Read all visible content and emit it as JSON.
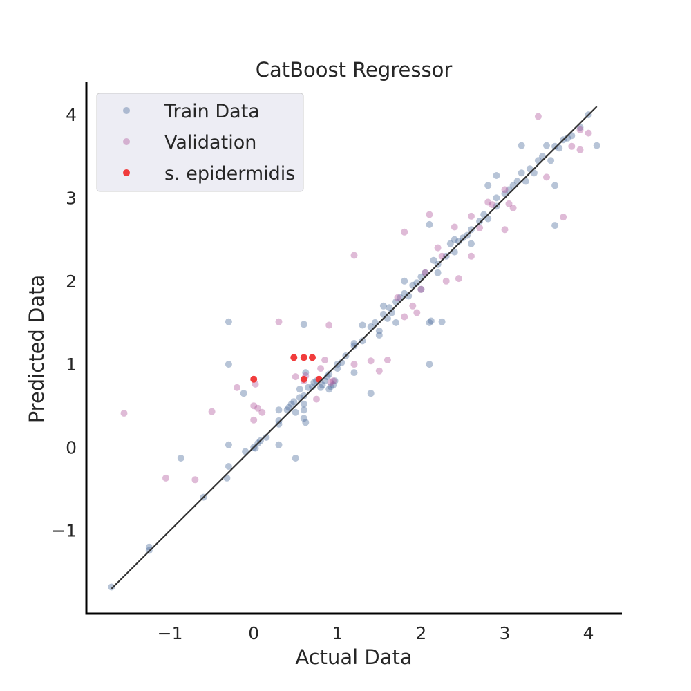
{
  "chart_data": {
    "type": "scatter",
    "title": "CatBoost Regressor",
    "xlabel": "Actual Data",
    "ylabel": "Predicted Data",
    "xlim": [
      -2.0,
      4.4
    ],
    "ylim": [
      -2.0,
      4.4
    ],
    "xticks": [
      -1,
      0,
      1,
      2,
      3,
      4
    ],
    "yticks": [
      -1,
      0,
      1,
      2,
      3,
      4
    ],
    "xtick_labels": [
      "−1",
      "0",
      "1",
      "2",
      "3",
      "4"
    ],
    "ytick_labels": [
      "−1",
      "0",
      "1",
      "2",
      "3",
      "4"
    ],
    "grid": false,
    "legend_position": "top-left",
    "reference_line": {
      "x": [
        -1.7,
        4.1
      ],
      "y": [
        -1.7,
        4.1
      ],
      "color": "#333333"
    },
    "series": [
      {
        "name": "Train Data",
        "color": "#4c6b9c",
        "opacity": 0.4,
        "points": [
          [
            -1.7,
            -1.68
          ],
          [
            -1.25,
            -1.2
          ],
          [
            -1.25,
            -1.24
          ],
          [
            -0.6,
            -0.6
          ],
          [
            -0.87,
            -0.13
          ],
          [
            -0.32,
            -0.37
          ],
          [
            -0.3,
            -0.23
          ],
          [
            -0.3,
            0.03
          ],
          [
            -0.3,
            1.0
          ],
          [
            -0.3,
            1.51
          ],
          [
            -0.12,
            0.65
          ],
          [
            -0.1,
            -0.05
          ],
          [
            0.0,
            0.0
          ],
          [
            0.02,
            -0.01
          ],
          [
            0.05,
            0.05
          ],
          [
            0.08,
            0.08
          ],
          [
            0.15,
            0.12
          ],
          [
            0.3,
            0.03
          ],
          [
            0.3,
            0.28
          ],
          [
            0.3,
            0.32
          ],
          [
            0.3,
            0.45
          ],
          [
            0.4,
            0.45
          ],
          [
            0.42,
            0.48
          ],
          [
            0.45,
            0.52
          ],
          [
            0.48,
            0.55
          ],
          [
            0.5,
            0.42
          ],
          [
            0.5,
            -0.13
          ],
          [
            0.55,
            0.6
          ],
          [
            0.55,
            0.7
          ],
          [
            0.6,
            0.35
          ],
          [
            0.6,
            0.45
          ],
          [
            0.6,
            0.52
          ],
          [
            0.6,
            0.62
          ],
          [
            0.62,
            0.3
          ],
          [
            0.6,
            1.48
          ],
          [
            0.62,
            0.9
          ],
          [
            0.65,
            0.72
          ],
          [
            0.7,
            0.73
          ],
          [
            0.72,
            0.78
          ],
          [
            0.75,
            0.8
          ],
          [
            0.8,
            0.72
          ],
          [
            0.82,
            0.75
          ],
          [
            0.85,
            0.8
          ],
          [
            0.88,
            0.85
          ],
          [
            0.9,
            0.7
          ],
          [
            0.9,
            0.88
          ],
          [
            0.92,
            0.73
          ],
          [
            0.95,
            0.75
          ],
          [
            0.97,
            0.8
          ],
          [
            1.0,
            1.0
          ],
          [
            1.0,
            0.95
          ],
          [
            1.05,
            1.02
          ],
          [
            1.1,
            1.1
          ],
          [
            1.2,
            1.22
          ],
          [
            1.2,
            1.25
          ],
          [
            1.2,
            0.9
          ],
          [
            1.3,
            1.28
          ],
          [
            1.3,
            1.47
          ],
          [
            1.4,
            0.65
          ],
          [
            1.4,
            1.45
          ],
          [
            1.45,
            1.5
          ],
          [
            1.5,
            1.35
          ],
          [
            1.5,
            1.4
          ],
          [
            1.55,
            1.6
          ],
          [
            1.55,
            1.7
          ],
          [
            1.6,
            1.55
          ],
          [
            1.62,
            1.68
          ],
          [
            1.65,
            1.62
          ],
          [
            1.7,
            1.75
          ],
          [
            1.7,
            1.5
          ],
          [
            1.75,
            1.8
          ],
          [
            1.8,
            1.85
          ],
          [
            1.8,
            2.0
          ],
          [
            1.85,
            1.82
          ],
          [
            1.9,
            1.95
          ],
          [
            1.95,
            1.98
          ],
          [
            2.0,
            2.05
          ],
          [
            2.0,
            1.9
          ],
          [
            2.05,
            2.1
          ],
          [
            2.1,
            1.5
          ],
          [
            2.1,
            2.68
          ],
          [
            2.1,
            1.0
          ],
          [
            2.12,
            1.52
          ],
          [
            2.15,
            2.25
          ],
          [
            2.2,
            2.2
          ],
          [
            2.25,
            1.51
          ],
          [
            2.2,
            2.1
          ],
          [
            2.3,
            2.3
          ],
          [
            2.35,
            2.45
          ],
          [
            2.4,
            2.35
          ],
          [
            2.4,
            2.5
          ],
          [
            2.45,
            2.48
          ],
          [
            2.5,
            2.52
          ],
          [
            2.55,
            2.55
          ],
          [
            2.6,
            2.62
          ],
          [
            2.6,
            2.45
          ],
          [
            2.7,
            2.72
          ],
          [
            2.75,
            2.8
          ],
          [
            2.8,
            2.75
          ],
          [
            2.8,
            3.15
          ],
          [
            2.9,
            3.0
          ],
          [
            2.9,
            3.27
          ],
          [
            2.9,
            2.9
          ],
          [
            3.0,
            3.05
          ],
          [
            3.05,
            3.1
          ],
          [
            3.1,
            3.15
          ],
          [
            3.15,
            3.2
          ],
          [
            3.2,
            3.3
          ],
          [
            3.2,
            3.63
          ],
          [
            3.25,
            3.2
          ],
          [
            3.3,
            3.35
          ],
          [
            3.35,
            3.3
          ],
          [
            3.4,
            3.45
          ],
          [
            3.45,
            3.5
          ],
          [
            3.5,
            3.63
          ],
          [
            3.55,
            3.45
          ],
          [
            3.6,
            3.15
          ],
          [
            3.6,
            3.62
          ],
          [
            3.6,
            2.67
          ],
          [
            3.65,
            3.6
          ],
          [
            3.7,
            3.7
          ],
          [
            3.75,
            3.72
          ],
          [
            3.8,
            3.75
          ],
          [
            3.9,
            3.85
          ],
          [
            4.0,
            4.0
          ],
          [
            4.1,
            3.63
          ]
        ]
      },
      {
        "name": "Validation",
        "color": "#b0569a",
        "opacity": 0.4,
        "points": [
          [
            -1.55,
            0.41
          ],
          [
            -1.05,
            -0.37
          ],
          [
            -0.7,
            -0.39
          ],
          [
            -0.5,
            0.43
          ],
          [
            -0.2,
            0.72
          ],
          [
            0.0,
            0.33
          ],
          [
            0.0,
            0.5
          ],
          [
            0.02,
            0.76
          ],
          [
            0.05,
            0.47
          ],
          [
            0.1,
            0.42
          ],
          [
            0.3,
            1.51
          ],
          [
            0.5,
            0.85
          ],
          [
            0.6,
            0.8
          ],
          [
            0.62,
            0.86
          ],
          [
            0.75,
            0.58
          ],
          [
            0.8,
            0.95
          ],
          [
            0.85,
            1.05
          ],
          [
            0.9,
            1.47
          ],
          [
            0.92,
            0.78
          ],
          [
            0.95,
            0.8
          ],
          [
            1.2,
            1.0
          ],
          [
            1.2,
            2.31
          ],
          [
            1.4,
            1.04
          ],
          [
            1.5,
            0.92
          ],
          [
            1.6,
            1.05
          ],
          [
            1.72,
            1.8
          ],
          [
            1.8,
            1.57
          ],
          [
            1.8,
            2.59
          ],
          [
            1.9,
            1.7
          ],
          [
            1.95,
            1.62
          ],
          [
            2.0,
            1.9
          ],
          [
            2.05,
            2.1
          ],
          [
            2.1,
            2.8
          ],
          [
            2.2,
            2.4
          ],
          [
            2.25,
            2.3
          ],
          [
            2.3,
            2.0
          ],
          [
            2.45,
            2.03
          ],
          [
            2.4,
            2.65
          ],
          [
            2.6,
            2.3
          ],
          [
            2.6,
            2.78
          ],
          [
            2.7,
            2.64
          ],
          [
            2.8,
            2.95
          ],
          [
            2.85,
            2.92
          ],
          [
            3.0,
            3.1
          ],
          [
            3.0,
            2.62
          ],
          [
            3.05,
            2.93
          ],
          [
            3.1,
            2.88
          ],
          [
            3.4,
            3.98
          ],
          [
            3.5,
            3.25
          ],
          [
            3.7,
            2.77
          ],
          [
            3.8,
            3.62
          ],
          [
            3.9,
            3.58
          ],
          [
            3.9,
            3.82
          ],
          [
            4.0,
            3.78
          ]
        ]
      },
      {
        "name": "s. epidermidis",
        "color": "#f03232",
        "opacity": 0.95,
        "points": [
          [
            0.0,
            0.82
          ],
          [
            0.48,
            1.08
          ],
          [
            0.6,
            1.08
          ],
          [
            0.7,
            1.08
          ],
          [
            0.6,
            0.82
          ],
          [
            0.78,
            0.82
          ]
        ]
      }
    ]
  }
}
